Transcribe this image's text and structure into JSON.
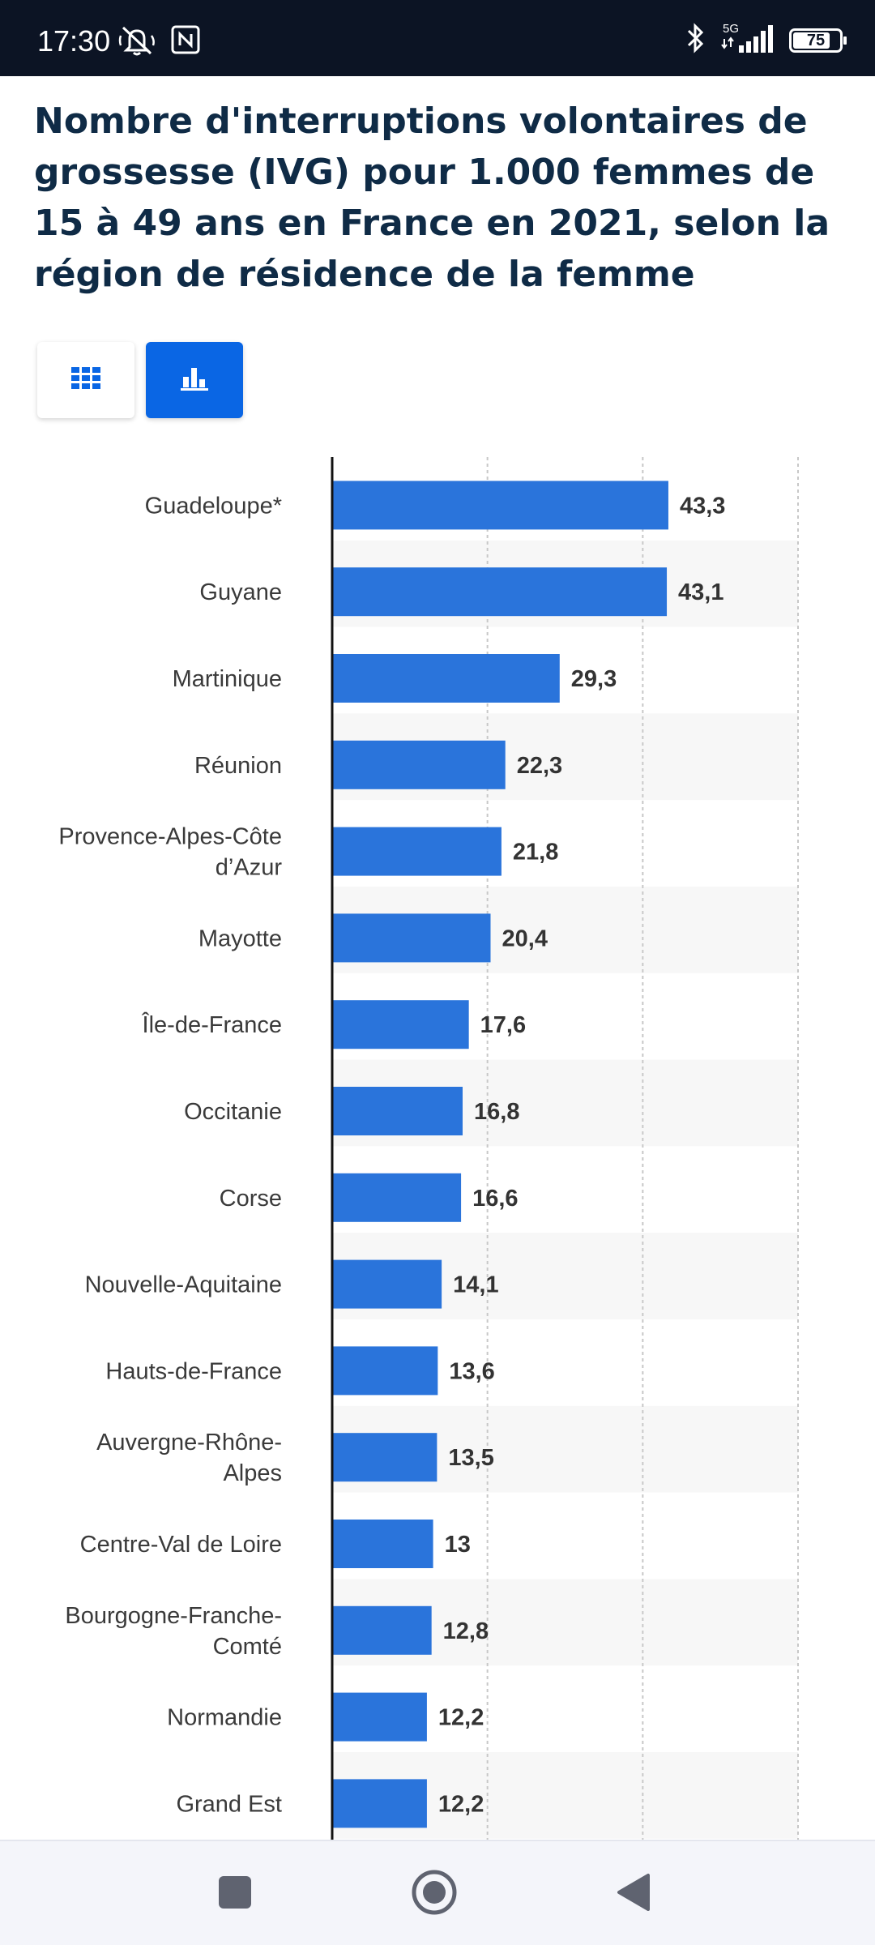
{
  "status_bar": {
    "time": "17:30",
    "network": "5G",
    "battery": "75",
    "icons": [
      "mute-icon",
      "nfc-icon",
      "bluetooth-icon",
      "signal-icon",
      "battery-icon"
    ]
  },
  "title": "Nombre d'interruptions volontaires de grossesse (IVG) pour 1.000 femmes de 15 à 49 ans en France en 2021, selon la région de résidence de la femme",
  "view_toggle": {
    "table_icon": "grid-icon",
    "chart_icon": "bar-chart-icon",
    "active": "chart",
    "active_color": "#0a66e4"
  },
  "chart_data": {
    "type": "bar",
    "orientation": "horizontal",
    "categories": [
      "Guadeloupe*",
      "Guyane",
      "Martinique",
      "Réunion",
      "Provence-Alpes-Côte d’Azur",
      "Mayotte",
      "Île-de-France",
      "Occitanie",
      "Corse",
      "Nouvelle-Aquitaine",
      "Hauts-de-France",
      "Auvergne-Rhône-Alpes",
      "Centre-Val de Loire",
      "Bourgogne-Franche-Comté",
      "Normandie",
      "Grand Est"
    ],
    "category_lines": [
      [
        "Guadeloupe*"
      ],
      [
        "Guyane"
      ],
      [
        "Martinique"
      ],
      [
        "Réunion"
      ],
      [
        "Provence-Alpes-Côte",
        "d’Azur"
      ],
      [
        "Mayotte"
      ],
      [
        "Île-de-France"
      ],
      [
        "Occitanie"
      ],
      [
        "Corse"
      ],
      [
        "Nouvelle-Aquitaine"
      ],
      [
        "Hauts-de-France"
      ],
      [
        "Auvergne-Rhône-",
        "Alpes"
      ],
      [
        "Centre-Val de Loire"
      ],
      [
        "Bourgogne-Franche-",
        "Comté"
      ],
      [
        "Normandie"
      ],
      [
        "Grand Est"
      ]
    ],
    "values": [
      43.3,
      43.1,
      29.3,
      22.3,
      21.8,
      20.4,
      17.6,
      16.8,
      16.6,
      14.1,
      13.6,
      13.5,
      13,
      12.8,
      12.2,
      12.2
    ],
    "value_labels": [
      "43,3",
      "43,1",
      "29,3",
      "22,3",
      "21,8",
      "20,4",
      "17,6",
      "16,8",
      "16,6",
      "14,1",
      "13,6",
      "13,5",
      "13",
      "12,8",
      "12,2",
      "12,2"
    ],
    "xlim": [
      0,
      60
    ],
    "gridlines": [
      20,
      40,
      60
    ],
    "grid": true,
    "bar_color": "#2a74db",
    "label_color": "#3a3a3a",
    "value_label_color": "#333333",
    "stripe_color": "#f7f7f7"
  },
  "nav_bar": {
    "buttons": [
      "recent-apps-icon",
      "home-icon",
      "back-icon"
    ]
  }
}
